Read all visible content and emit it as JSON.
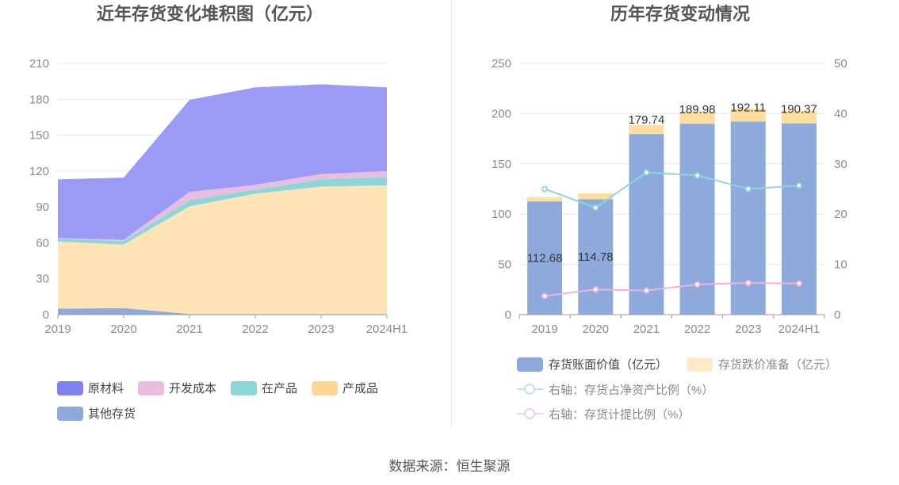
{
  "left": {
    "title": "近年存货变化堆积图（亿元）",
    "chart_data": {
      "type": "area",
      "stacked": true,
      "categories": [
        "2019",
        "2020",
        "2021",
        "2022",
        "2023",
        "2024H1"
      ],
      "ylim": [
        0,
        210
      ],
      "yticks": [
        0,
        30,
        60,
        90,
        120,
        150,
        180,
        210
      ],
      "grid": true,
      "legend_position": "bottom",
      "series": [
        {
          "name": "其他存货",
          "color": "#8eaadc",
          "values": [
            5,
            5.5,
            0.5,
            0.5,
            0.5,
            0.5
          ]
        },
        {
          "name": "产成品",
          "color": "#ffe4b5",
          "values": [
            56,
            53,
            90,
            100.5,
            106.5,
            107.5
          ]
        },
        {
          "name": "在产品",
          "color": "#8dd6d8",
          "values": [
            2.5,
            3,
            5,
            3.5,
            6,
            7
          ]
        },
        {
          "name": "开发成本",
          "color": "#e9bde0",
          "values": [
            0.5,
            1,
            7,
            4,
            4.5,
            5
          ]
        },
        {
          "name": "原材料",
          "color": "#9b9bf5",
          "values": [
            49,
            52,
            77,
            81.5,
            75,
            70
          ]
        }
      ]
    },
    "legend": [
      {
        "label": "原材料",
        "color": "#8082f0"
      },
      {
        "label": "开发成本",
        "color": "#e9bde0"
      },
      {
        "label": "在产品",
        "color": "#8dd6d8"
      },
      {
        "label": "产成品",
        "color": "#ffd795"
      },
      {
        "label": "其他存货",
        "color": "#8eaadc"
      }
    ]
  },
  "right": {
    "title": "历年存货变动情况",
    "chart_data": {
      "type": "bar",
      "categories": [
        "2019",
        "2020",
        "2021",
        "2022",
        "2023",
        "2024H1"
      ],
      "ylim": [
        0,
        250
      ],
      "yticks": [
        0,
        50,
        100,
        150,
        200,
        250
      ],
      "y2lim": [
        0,
        50
      ],
      "y2ticks": [
        0,
        10,
        20,
        30,
        40,
        50
      ],
      "grid": true,
      "legend_position": "bottom",
      "bar_series": [
        {
          "name": "存货账面价值（亿元）",
          "color": "#8eaadc",
          "values": [
            112.68,
            114.78,
            179.74,
            189.98,
            192.11,
            190.37
          ],
          "labels": [
            "112.68",
            "114.78",
            "179.74",
            "189.98",
            "192.11",
            "190.37"
          ]
        },
        {
          "name": "存货跌价准备（亿元）",
          "color": "#ffdd9e",
          "values": [
            4.2,
            6.0,
            8.9,
            12.1,
            12.9,
            12.6
          ]
        }
      ],
      "line_series": [
        {
          "name": "右轴：存货占净资产比例（%）",
          "color": "#8dd6d8",
          "values": [
            25.0,
            21.3,
            28.3,
            27.7,
            25.0,
            25.7
          ]
        },
        {
          "name": "右轴：存货计提比例（%）",
          "color": "#e9b5de",
          "values": [
            3.7,
            5.0,
            4.8,
            6.0,
            6.3,
            6.2
          ]
        }
      ]
    }
  },
  "footer": {
    "text": "数据来源：恒生聚源"
  }
}
